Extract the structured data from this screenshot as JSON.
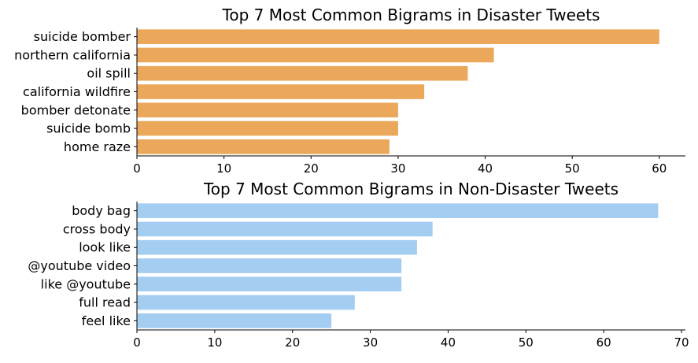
{
  "chart_data": [
    {
      "type": "bar",
      "orientation": "horizontal",
      "title": "Top 7 Most Common Bigrams in Disaster Tweets",
      "categories": [
        "suicide bomber",
        "northern california",
        "oil spill",
        "california wildfire",
        "bomber detonate",
        "suicide bomb",
        "home raze"
      ],
      "values": [
        60,
        41,
        38,
        33,
        30,
        30,
        29
      ],
      "xlim": [
        0,
        63
      ],
      "xticks": [
        0,
        10,
        20,
        30,
        40,
        50,
        60
      ],
      "xlabel": "",
      "ylabel": "",
      "bar_color": "#EBA75A",
      "grid": false
    },
    {
      "type": "bar",
      "orientation": "horizontal",
      "title": "Top 7 Most Common Bigrams in Non-Disaster Tweets",
      "categories": [
        "body bag",
        "cross body",
        "look like",
        "@youtube video",
        "like @youtube",
        "full read",
        "feel like"
      ],
      "values": [
        67,
        38,
        36,
        34,
        34,
        28,
        25
      ],
      "xlim": [
        0,
        70.5
      ],
      "xticks": [
        0,
        10,
        20,
        30,
        40,
        50,
        60,
        70
      ],
      "xlabel": "",
      "ylabel": "",
      "bar_color": "#A3CEF1",
      "grid": false
    }
  ]
}
